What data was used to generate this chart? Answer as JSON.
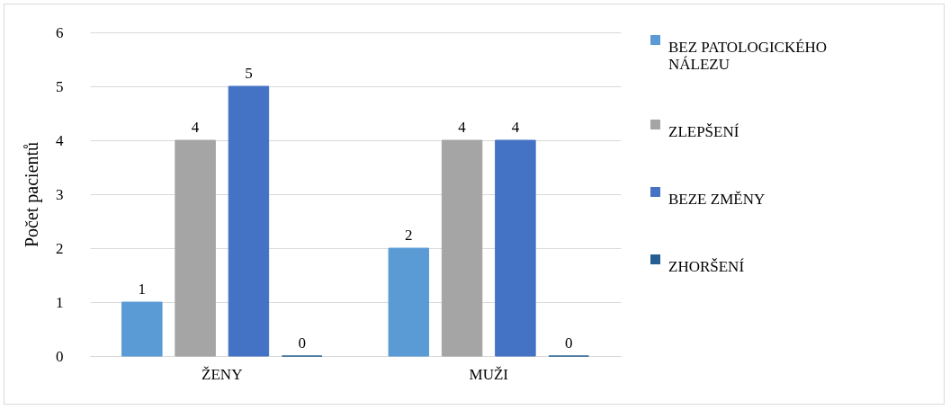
{
  "chart_data": {
    "type": "bar",
    "categories": [
      "ŽENY",
      "MUŽI"
    ],
    "ylabel": "Počet pacientů",
    "ylim": [
      0,
      6
    ],
    "yticks": [
      0,
      1,
      2,
      3,
      4,
      5,
      6
    ],
    "grid": "y",
    "legend": "right",
    "data_labels": true,
    "series": [
      {
        "name": "BEZ PATOLOGICKÉHO NÁLEZU",
        "color": "#5b9bd5",
        "values": [
          1,
          2
        ]
      },
      {
        "name": "ZLEPŠENÍ",
        "color": "#a5a5a5",
        "values": [
          4,
          4
        ]
      },
      {
        "name": "BEZE ZMĚNY",
        "color": "#4472c4",
        "values": [
          5,
          4
        ]
      },
      {
        "name": "ZHORŠENÍ",
        "color": "#255e91",
        "values": [
          0,
          0
        ]
      }
    ]
  }
}
